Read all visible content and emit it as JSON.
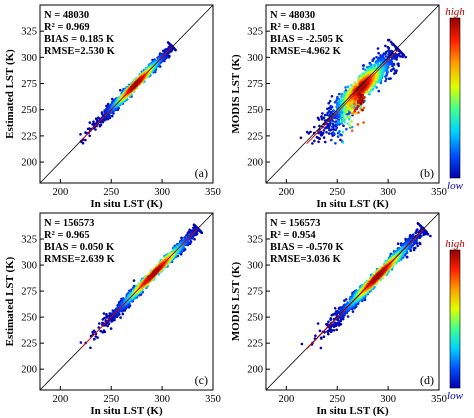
{
  "colorbar": {
    "high_label": "high",
    "low_label": "low",
    "colors": [
      "#0000b0",
      "#0050ff",
      "#00d0ff",
      "#40ff90",
      "#e0ff00",
      "#ffa000",
      "#ff2000",
      "#900000"
    ]
  },
  "panels": [
    {
      "id": "a",
      "letter": "(a)",
      "ylabel": "Estimated LST (K)",
      "xlabel": "In situ LST (K)",
      "stats": [
        "N = 48030",
        "R² = 0.969",
        "BIAS = 0.185 K",
        "RMSE=2.530 K"
      ]
    },
    {
      "id": "b",
      "letter": "(b)",
      "ylabel": "MODIS LST (K)",
      "xlabel": "In situ LST (K)",
      "stats": [
        "N = 48030",
        "R² = 0.881",
        "BIAS = -2.505 K",
        "RMSE=4.962 K"
      ]
    },
    {
      "id": "c",
      "letter": "(c)",
      "ylabel": "Estimated LST (K)",
      "xlabel": "In situ LST (K)",
      "stats": [
        "N = 156573",
        "R² = 0.965",
        "BIAS = 0.050 K",
        "RMSE=2.639 K"
      ]
    },
    {
      "id": "d",
      "letter": "(d)",
      "ylabel": "MODIS LST (K)",
      "xlabel": "In situ LST (K)",
      "stats": [
        "N = 156573",
        "R² = 0.954",
        "BIAS = -0.570 K",
        "RMSE=3.036 K"
      ]
    }
  ],
  "chart_data": [
    {
      "type": "scatter",
      "panel": "a",
      "xlabel": "In situ LST (K)",
      "ylabel": "Estimated LST (K)",
      "xlim": [
        180,
        350
      ],
      "ylim": [
        180,
        350
      ],
      "xticks": [
        200,
        250,
        300,
        350
      ],
      "yticks": [
        200,
        225,
        250,
        275,
        300,
        325
      ],
      "one_to_one_line": true,
      "density_center": [
        274,
        274
      ],
      "x_range_data": [
        220,
        310
      ],
      "stats": {
        "N": 48030,
        "R2": 0.969,
        "BIAS": 0.185,
        "RMSE": 2.53
      }
    },
    {
      "type": "scatter",
      "panel": "b",
      "xlabel": "In situ LST (K)",
      "ylabel": "MODIS LST (K)",
      "xlim": [
        180,
        350
      ],
      "ylim": [
        180,
        350
      ],
      "xticks": [
        200,
        250,
        300,
        350
      ],
      "yticks": [
        200,
        225,
        250,
        275,
        300,
        325
      ],
      "one_to_one_line": true,
      "density_center": [
        274,
        272
      ],
      "x_range_data": [
        220,
        310
      ],
      "stats": {
        "N": 48030,
        "R2": 0.881,
        "BIAS": -2.505,
        "RMSE": 4.962
      }
    },
    {
      "type": "scatter",
      "panel": "c",
      "xlabel": "In situ LST (K)",
      "ylabel": "Estimated LST (K)",
      "xlim": [
        180,
        350
      ],
      "ylim": [
        180,
        350
      ],
      "xticks": [
        200,
        250,
        300,
        350
      ],
      "yticks": [
        200,
        225,
        250,
        275,
        300,
        325
      ],
      "one_to_one_line": true,
      "density_center": [
        292,
        292
      ],
      "x_range_data": [
        220,
        335
      ],
      "stats": {
        "N": 156573,
        "R2": 0.965,
        "BIAS": 0.05,
        "RMSE": 2.639
      }
    },
    {
      "type": "scatter",
      "panel": "d",
      "xlabel": "In situ LST (K)",
      "ylabel": "MODIS LST (K)",
      "xlim": [
        180,
        350
      ],
      "ylim": [
        180,
        350
      ],
      "xticks": [
        200,
        250,
        300,
        350
      ],
      "yticks": [
        200,
        225,
        250,
        275,
        300,
        325
      ],
      "one_to_one_line": true,
      "density_center": [
        290,
        289
      ],
      "x_range_data": [
        220,
        335
      ],
      "stats": {
        "N": 156573,
        "R2": 0.954,
        "BIAS": -0.57,
        "RMSE": 3.036
      }
    }
  ]
}
